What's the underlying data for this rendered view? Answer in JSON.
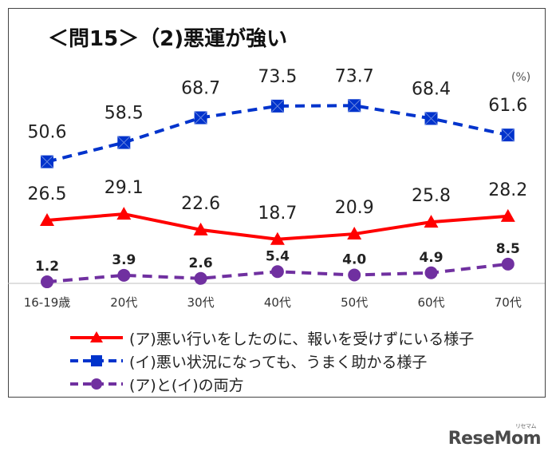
{
  "chart_data": {
    "type": "line",
    "title": "＜問15＞（2)悪運が強い",
    "unit": "(%)",
    "categories": [
      "16-19歳",
      "20代",
      "30代",
      "40代",
      "50代",
      "60代",
      "70代"
    ],
    "ylim": [
      0,
      80
    ],
    "grid": false,
    "legend_position": "bottom",
    "series": [
      {
        "name": "(ア)悪い行いをしたのに、報いを受けずにいる様子",
        "values": [
          26.5,
          29.1,
          22.6,
          18.7,
          20.9,
          25.8,
          28.2
        ],
        "color": "#ff0000",
        "marker": "triangle",
        "dash": "solid"
      },
      {
        "name": "(イ)悪い状況になっても、うまく助かる様子",
        "values": [
          50.6,
          58.5,
          68.7,
          73.5,
          73.7,
          68.4,
          61.6
        ],
        "color": "#0033cc",
        "marker": "square",
        "dash": "dashed"
      },
      {
        "name": "(ア)と(イ)の両方",
        "values": [
          1.2,
          3.9,
          2.6,
          5.4,
          4.0,
          4.9,
          8.5
        ],
        "color": "#7030a0",
        "marker": "circle",
        "dash": "dashed"
      }
    ]
  },
  "footer": {
    "logo": "ReseMom",
    "logo_small": "リセマム"
  }
}
